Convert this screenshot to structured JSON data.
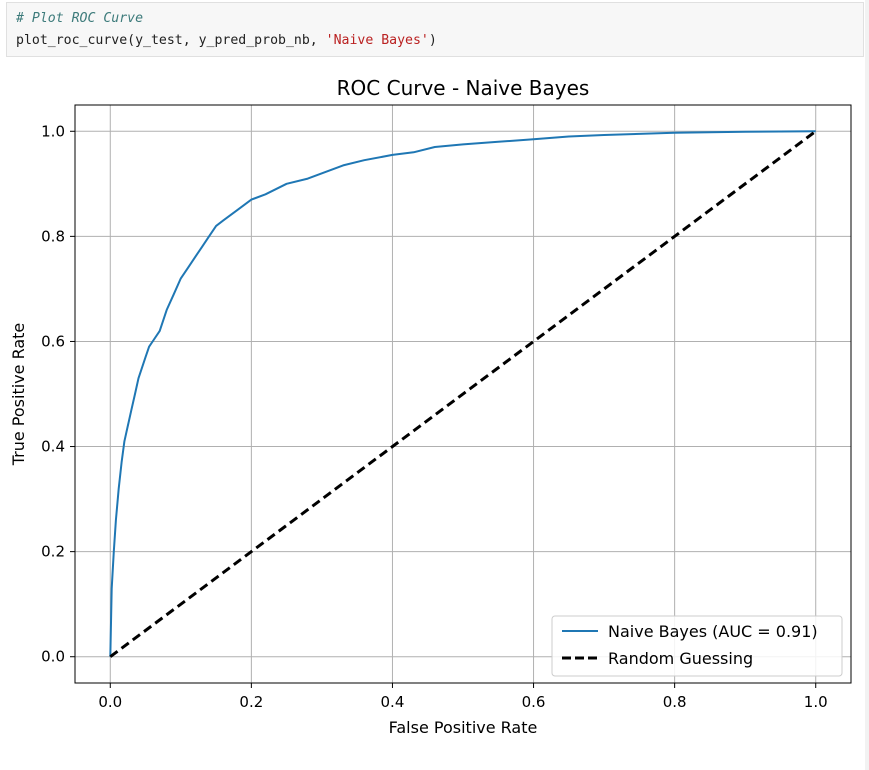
{
  "code_cell": {
    "comment": "# Plot ROC Curve",
    "call_prefix": "plot_roc_curve(y_test, y_pred_prob_nb, ",
    "call_string": "'Naive Bayes'",
    "call_suffix": ")"
  },
  "chart_data": {
    "type": "line",
    "title": "ROC Curve - Naive Bayes",
    "xlabel": "False Positive Rate",
    "ylabel": "True Positive Rate",
    "xlim": [
      -0.05,
      1.05
    ],
    "ylim": [
      -0.05,
      1.05
    ],
    "grid": true,
    "legend_position": "lower-right",
    "x_ticks": [
      "0.0",
      "0.2",
      "0.4",
      "0.6",
      "0.8",
      "1.0"
    ],
    "y_ticks": [
      "0.0",
      "0.2",
      "0.4",
      "0.6",
      "0.8",
      "1.0"
    ],
    "series": [
      {
        "name": "Naive Bayes (AUC = 0.91)",
        "color": "#1f77b4",
        "style": "solid",
        "x": [
          0.0,
          0.002,
          0.005,
          0.008,
          0.012,
          0.016,
          0.02,
          0.025,
          0.03,
          0.035,
          0.04,
          0.045,
          0.05,
          0.055,
          0.06,
          0.07,
          0.08,
          0.09,
          0.1,
          0.11,
          0.12,
          0.13,
          0.14,
          0.15,
          0.16,
          0.18,
          0.2,
          0.22,
          0.25,
          0.28,
          0.3,
          0.33,
          0.36,
          0.4,
          0.43,
          0.46,
          0.5,
          0.55,
          0.6,
          0.65,
          0.7,
          0.8,
          0.9,
          1.0
        ],
        "y": [
          0.0,
          0.13,
          0.2,
          0.26,
          0.32,
          0.37,
          0.41,
          0.44,
          0.47,
          0.5,
          0.53,
          0.55,
          0.57,
          0.59,
          0.6,
          0.62,
          0.66,
          0.69,
          0.72,
          0.74,
          0.76,
          0.78,
          0.8,
          0.82,
          0.83,
          0.85,
          0.87,
          0.88,
          0.9,
          0.91,
          0.92,
          0.935,
          0.945,
          0.955,
          0.96,
          0.97,
          0.975,
          0.98,
          0.985,
          0.99,
          0.993,
          0.997,
          0.999,
          1.0
        ]
      },
      {
        "name": "Random Guessing",
        "color": "#000000",
        "style": "dashed",
        "x": [
          0.0,
          1.0
        ],
        "y": [
          0.0,
          1.0
        ]
      }
    ]
  }
}
